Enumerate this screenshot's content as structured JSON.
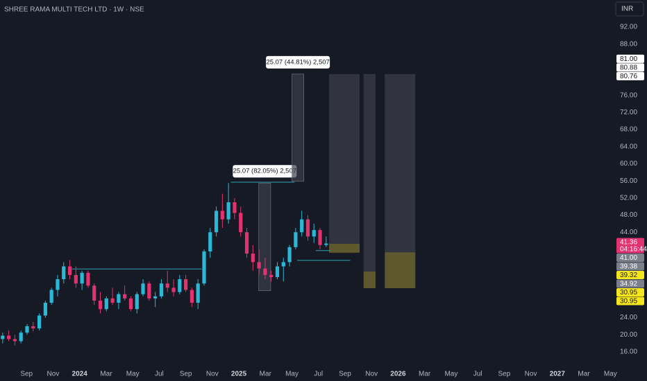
{
  "chart_data": {
    "type": "candlestick",
    "title": "SHREE RAMA MULTI TECH LTD · 1W · NSE",
    "currency": "INR",
    "up_color": "#2bb7d6",
    "down_color": "#e0336f",
    "xlim": [
      0,
      46.3
    ],
    "ylim": [
      14.05,
      98.32
    ],
    "xticks": [
      {
        "value": 2,
        "label": "Sep"
      },
      {
        "value": 4,
        "label": "Nov"
      },
      {
        "value": 6,
        "label": "2024"
      },
      {
        "value": 8,
        "label": "Mar"
      },
      {
        "value": 10,
        "label": "May"
      },
      {
        "value": 12,
        "label": "Jul"
      },
      {
        "value": 14,
        "label": "Sep"
      },
      {
        "value": 16,
        "label": "Nov"
      },
      {
        "value": 18,
        "label": "2025"
      },
      {
        "value": 20,
        "label": "Mar"
      },
      {
        "value": 22,
        "label": "May"
      },
      {
        "value": 24,
        "label": "Jul"
      },
      {
        "value": 26,
        "label": "Sep"
      },
      {
        "value": 28,
        "label": "Nov"
      },
      {
        "value": 30,
        "label": "2026"
      },
      {
        "value": 32,
        "label": "Mar"
      },
      {
        "value": 34,
        "label": "May"
      },
      {
        "value": 36,
        "label": "Jul"
      },
      {
        "value": 38,
        "label": "Sep"
      },
      {
        "value": 40,
        "label": "Nov"
      },
      {
        "value": 42,
        "label": "2027"
      },
      {
        "value": 44,
        "label": "Mar"
      },
      {
        "value": 46,
        "label": "May"
      }
    ],
    "yticks": [
      {
        "value": 92,
        "label": "92.00"
      },
      {
        "value": 88,
        "label": "88.00"
      },
      {
        "value": 76,
        "label": "76.00"
      },
      {
        "value": 72,
        "label": "72.00"
      },
      {
        "value": 68,
        "label": "68.00"
      },
      {
        "value": 64,
        "label": "64.00"
      },
      {
        "value": 60,
        "label": "60.00"
      },
      {
        "value": 56,
        "label": "56.00"
      },
      {
        "value": 52,
        "label": "52.00"
      },
      {
        "value": 48,
        "label": "48.00"
      },
      {
        "value": 44,
        "label": "44.00"
      },
      {
        "value": 24,
        "label": "24.00"
      },
      {
        "value": 20,
        "label": "20.00"
      },
      {
        "value": 16,
        "label": "16.00"
      }
    ],
    "x": [
      0.2,
      0.66,
      1.12,
      1.58,
      2.04,
      2.5,
      2.96,
      3.42,
      3.88,
      4.34,
      4.8,
      5.26,
      5.72,
      6.18,
      6.64,
      7.1,
      7.56,
      8.02,
      8.48,
      8.94,
      9.4,
      9.86,
      10.32,
      10.78,
      11.24,
      11.7,
      12.16,
      12.62,
      13.08,
      13.54,
      14.0,
      14.46,
      14.92,
      15.38,
      15.84,
      16.3,
      16.76,
      17.22,
      17.68,
      18.14,
      18.6,
      19.06,
      19.52,
      19.98,
      20.44,
      20.9,
      21.36,
      21.82,
      22.28,
      22.74,
      23.2,
      23.66,
      24.12,
      24.58
    ],
    "ohlc": [
      [
        19,
        20.5,
        18,
        19.8
      ],
      [
        19.8,
        21,
        18.5,
        19
      ],
      [
        19,
        20,
        17.5,
        18.5
      ],
      [
        18.5,
        21,
        18,
        20.5
      ],
      [
        20.5,
        22.5,
        20,
        22
      ],
      [
        22,
        23,
        20.8,
        21.5
      ],
      [
        21.5,
        25,
        21,
        24.5
      ],
      [
        24.5,
        28,
        24,
        27.5
      ],
      [
        27.5,
        31,
        27,
        30.5
      ],
      [
        30.5,
        34,
        29,
        33
      ],
      [
        33,
        37,
        32,
        36
      ],
      [
        36,
        37.5,
        33,
        34
      ],
      [
        34,
        36,
        31,
        32
      ],
      [
        32,
        35,
        30.5,
        34.5
      ],
      [
        34.5,
        35,
        31,
        31.5
      ],
      [
        31.5,
        32,
        27,
        28
      ],
      [
        28,
        30,
        25,
        26
      ],
      [
        26,
        29,
        25.5,
        28.5
      ],
      [
        28.5,
        31,
        27,
        27.5
      ],
      [
        27.5,
        30,
        26,
        29.5
      ],
      [
        29.5,
        31.5,
        28,
        28.5
      ],
      [
        28.5,
        29,
        25.5,
        26
      ],
      [
        26,
        30,
        25,
        29.5
      ],
      [
        29.5,
        33,
        29,
        32
      ],
      [
        32,
        32.5,
        28,
        28.5
      ],
      [
        28.5,
        30,
        26.5,
        29
      ],
      [
        29,
        33,
        28.5,
        32
      ],
      [
        32,
        35,
        30,
        31
      ],
      [
        31,
        33,
        29,
        30
      ],
      [
        30,
        34,
        29.5,
        33
      ],
      [
        33,
        34,
        30,
        30.5
      ],
      [
        30.5,
        31,
        26.5,
        27.5
      ],
      [
        27.5,
        33,
        26,
        32
      ],
      [
        32,
        40,
        31.5,
        39.5
      ],
      [
        39.5,
        45,
        38,
        44
      ],
      [
        44,
        50,
        43,
        49
      ],
      [
        49,
        53,
        45,
        47
      ],
      [
        47,
        55.5,
        46,
        51
      ],
      [
        51,
        52,
        47,
        48.5
      ],
      [
        48.5,
        50,
        43,
        44
      ],
      [
        44,
        45,
        38,
        39
      ],
      [
        39,
        41,
        35,
        37
      ],
      [
        37,
        40,
        34,
        35.5
      ],
      [
        35.5,
        38,
        33,
        34
      ],
      [
        34,
        35,
        32.5,
        33.5
      ],
      [
        33.5,
        37,
        33,
        36
      ],
      [
        36,
        38,
        32.5,
        37
      ],
      [
        37,
        41,
        36,
        40.5
      ],
      [
        40.5,
        45,
        40,
        44
      ],
      [
        44,
        49,
        43,
        47
      ],
      [
        47,
        48,
        42,
        43
      ],
      [
        43,
        46,
        41.5,
        44.5
      ],
      [
        44.5,
        45,
        40,
        41
      ],
      [
        41,
        43,
        40.5,
        41.36
      ]
    ],
    "levels": [
      {
        "x": [
          5.4,
          15.2
        ],
        "y": 35.4
      },
      {
        "x": [
          17.4,
          22.2
        ],
        "y": 55.7
      },
      {
        "x": [
          22.4,
          26.4
        ],
        "y": 37.4
      },
      {
        "x": [
          23.8,
          24.9
        ],
        "y": 39.7
      }
    ],
    "zones": [
      {
        "x": [
          19.5,
          20.4
        ],
        "y": [
          30.3,
          55.5
        ],
        "color": "#3a3e4a",
        "label": "25.07 (82.05%) 2,507"
      },
      {
        "x": [
          22.0,
          22.9
        ],
        "y": [
          55.9,
          81
        ],
        "color": "#3a3e4a",
        "label": "25.07 (44.81%) 2,507"
      },
      {
        "x": [
          24.8,
          27.1
        ],
        "y": [
          41.3,
          81
        ],
        "color": "#363a45"
      },
      {
        "x": [
          24.8,
          27.1
        ],
        "y": [
          39.2,
          41.3
        ],
        "color": "#6b6431"
      },
      {
        "x": [
          27.4,
          28.3
        ],
        "y": [
          34.8,
          81
        ],
        "color": "#363a45"
      },
      {
        "x": [
          27.4,
          28.3
        ],
        "y": [
          30.9,
          34.8
        ],
        "color": "#6b6431"
      },
      {
        "x": [
          29.0,
          31.3
        ],
        "y": [
          39.3,
          81
        ],
        "color": "#363a45"
      },
      {
        "x": [
          29.0,
          31.3
        ],
        "y": [
          30.9,
          39.3
        ],
        "color": "#6b6431"
      }
    ],
    "price_labels_top": [
      {
        "value": 81,
        "label": "81.00",
        "color": "#ffffff"
      },
      {
        "value": 80.88,
        "label": "80.88",
        "color": "#ffffff"
      },
      {
        "value": 80.76,
        "label": "80.76",
        "color": "#ffffff"
      }
    ],
    "price_labels_bottom": [
      {
        "value": 41.36,
        "label": "41.36",
        "color": "#e0336f",
        "countdown": "04:16:44"
      },
      {
        "value": 41,
        "label": "41.00",
        "color": "#7b7f8a"
      },
      {
        "value": 39.38,
        "label": "39.38",
        "color": "#7b7f8a"
      },
      {
        "value": 39.32,
        "label": "39.32",
        "color": "#f5e51d"
      },
      {
        "value": 34.92,
        "label": "34.92",
        "color": "#7b7f8a"
      },
      {
        "value": 30.95,
        "label": "30.95",
        "color": "#f5e51d"
      },
      {
        "value": 30.95,
        "label": "30.95",
        "color": "#f5e51d"
      }
    ]
  }
}
